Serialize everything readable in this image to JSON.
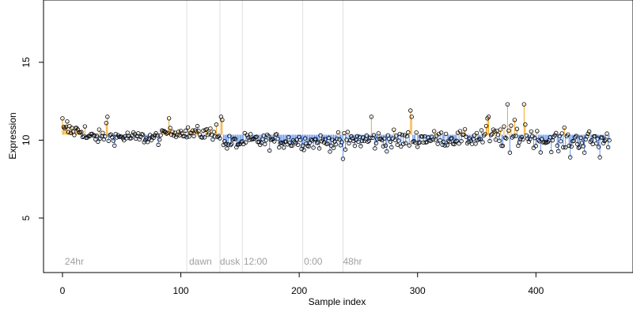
{
  "chart_data": {
    "type": "scatter",
    "title": "",
    "xlabel": "Sample index",
    "ylabel": "Expression",
    "xlim": [
      -16,
      482
    ],
    "ylim": [
      1.5,
      19
    ],
    "x_ticks": [
      0,
      100,
      200,
      300,
      400
    ],
    "y_ticks": [
      5,
      10,
      15
    ],
    "baseline": 10.35,
    "grid": false,
    "colors": {
      "above": "#f5a623",
      "below": "#6495ed",
      "points": "#000000",
      "marker_lines": "#e0e0e0"
    },
    "markers": [
      {
        "x": 105,
        "label": ""
      },
      {
        "x": 133,
        "label": ""
      },
      {
        "x": 152,
        "label": ""
      },
      {
        "x": 203,
        "label": ""
      },
      {
        "x": 237,
        "label": ""
      }
    ],
    "annotations": [
      {
        "x": 2,
        "y": 2.0,
        "text": "24hr"
      },
      {
        "x": 107,
        "y": 2.0,
        "text": "dawn"
      },
      {
        "x": 133,
        "y": 2.0,
        "text": "dusk"
      },
      {
        "x": 153,
        "y": 2.0,
        "text": "12:00"
      },
      {
        "x": 204,
        "y": 2.0,
        "text": "0:00"
      },
      {
        "x": 237,
        "y": 2.0,
        "text": "48hr"
      }
    ],
    "segments": [
      {
        "x0": 0,
        "x1": 20,
        "base": 10.6,
        "noise": 0.35
      },
      {
        "x0": 20,
        "x1": 60,
        "base": 10.2,
        "noise": 0.3
      },
      {
        "x0": 60,
        "x1": 85,
        "base": 10.15,
        "noise": 0.3
      },
      {
        "x0": 85,
        "x1": 105,
        "base": 10.5,
        "noise": 0.2
      },
      {
        "x0": 105,
        "x1": 133,
        "base": 10.45,
        "noise": 0.3
      },
      {
        "x0": 133,
        "x1": 152,
        "base": 9.8,
        "noise": 0.35
      },
      {
        "x0": 152,
        "x1": 203,
        "base": 9.95,
        "noise": 0.35
      },
      {
        "x0": 203,
        "x1": 237,
        "base": 9.9,
        "noise": 0.35
      },
      {
        "x0": 237,
        "x1": 300,
        "base": 10.0,
        "noise": 0.45
      },
      {
        "x0": 300,
        "x1": 350,
        "base": 10.1,
        "noise": 0.35
      },
      {
        "x0": 350,
        "x1": 400,
        "base": 10.2,
        "noise": 0.5
      },
      {
        "x0": 400,
        "x1": 462,
        "base": 10.0,
        "noise": 0.45
      }
    ],
    "highlights": [
      {
        "x": 0,
        "y": 11.4
      },
      {
        "x": 4,
        "y": 11.2
      },
      {
        "x": 37,
        "y": 11.1
      },
      {
        "x": 38,
        "y": 11.5
      },
      {
        "x": 90,
        "y": 11.4
      },
      {
        "x": 130,
        "y": 11.0
      },
      {
        "x": 134,
        "y": 11.5
      },
      {
        "x": 135,
        "y": 11.3
      },
      {
        "x": 237,
        "y": 8.8
      },
      {
        "x": 239,
        "y": 9.4
      },
      {
        "x": 261,
        "y": 11.5
      },
      {
        "x": 294,
        "y": 11.9
      },
      {
        "x": 295,
        "y": 11.5
      },
      {
        "x": 359,
        "y": 11.4
      },
      {
        "x": 360,
        "y": 11.5
      },
      {
        "x": 376,
        "y": 12.3
      },
      {
        "x": 382,
        "y": 11.3
      },
      {
        "x": 390,
        "y": 12.3
      },
      {
        "x": 391,
        "y": 11.0
      },
      {
        "x": 378,
        "y": 9.2
      },
      {
        "x": 429,
        "y": 8.9
      },
      {
        "x": 454,
        "y": 8.9
      },
      {
        "x": 441,
        "y": 9.2
      },
      {
        "x": 419,
        "y": 9.3
      }
    ],
    "n_points": 463
  }
}
